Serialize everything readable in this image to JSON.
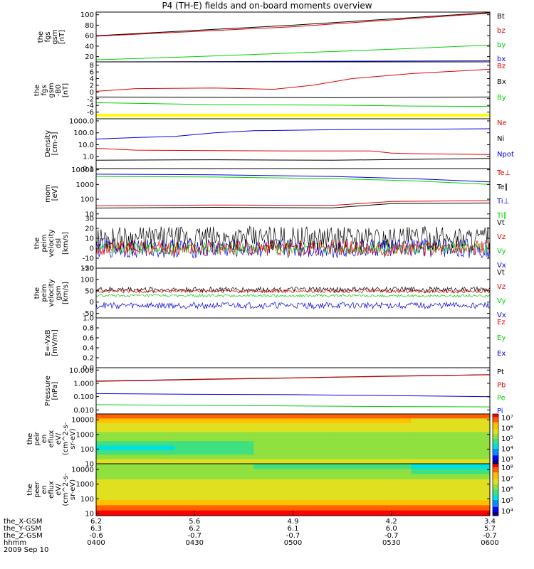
{
  "title": "P4 (TH-E) fields and on-board moments overview",
  "colors": {
    "black": "#000000",
    "red": "#e00000",
    "green": "#00d000",
    "blue": "#0000e0",
    "yellow": "#ffff00"
  },
  "chart_data": [
    {
      "type": "line",
      "ylabel": [
        "the",
        "fgs",
        "gsm",
        "[nT]"
      ],
      "ylim": [
        10,
        105
      ],
      "yticks": [
        20,
        40,
        60,
        80,
        100
      ],
      "legend": [
        {
          "name": "Bt",
          "color": "#000000"
        },
        {
          "name": "bz",
          "color": "#e00000"
        },
        {
          "name": "by",
          "color": "#00d000"
        },
        {
          "name": "bx",
          "color": "#0000e0"
        }
      ],
      "series": [
        {
          "name": "Bt",
          "color": "#000000",
          "x": [
            0,
            0.25,
            0.5,
            0.75,
            1
          ],
          "y": [
            60,
            70,
            80,
            92,
            104
          ]
        },
        {
          "name": "bz",
          "color": "#e00000",
          "x": [
            0,
            0.25,
            0.5,
            0.75,
            1
          ],
          "y": [
            59,
            68,
            77,
            90,
            103
          ]
        },
        {
          "name": "by",
          "color": "#00d000",
          "x": [
            0,
            0.25,
            0.5,
            0.75,
            1
          ],
          "y": [
            14,
            20,
            27,
            34,
            42
          ]
        },
        {
          "name": "bx",
          "color": "#0000e0",
          "x": [
            0,
            0.5,
            1
          ],
          "y": [
            10,
            11,
            12
          ]
        }
      ]
    },
    {
      "type": "line",
      "ylabel": [
        "the",
        "fgs",
        "gsm",
        "-B0",
        "[nT]"
      ],
      "ylim": [
        -8,
        9
      ],
      "yticks": [
        -6,
        -4,
        -2,
        0,
        2,
        4,
        6,
        8
      ],
      "legend": [
        {
          "name": "Bz",
          "color": "#e00000"
        },
        {
          "name": "Bx",
          "color": "#000000"
        },
        {
          "name": "By",
          "color": "#00d000"
        }
      ],
      "series": [
        {
          "name": "Bz",
          "color": "#e00000",
          "x": [
            0,
            0.1,
            0.3,
            0.45,
            0.55,
            0.65,
            0.8,
            1
          ],
          "y": [
            0.2,
            1,
            1.2,
            0.8,
            2,
            4,
            5.5,
            6.8
          ]
        },
        {
          "name": "Bx",
          "color": "#000000",
          "x": [
            0,
            0.3,
            0.6,
            0.8,
            1
          ],
          "y": [
            -1.5,
            -1.6,
            -1.7,
            -1.6,
            -1.5
          ]
        },
        {
          "name": "By",
          "color": "#00d000",
          "x": [
            0,
            0.3,
            0.6,
            0.8,
            1
          ],
          "y": [
            -3.2,
            -3.8,
            -3.9,
            -4.2,
            -4.3
          ]
        }
      ],
      "band": {
        "color": "#ffff00"
      }
    },
    {
      "type": "line",
      "scale": "log",
      "ylabel": [
        "Density",
        "[cm-3]"
      ],
      "ylim": [
        0.1,
        1500
      ],
      "yticks": [
        0.1,
        1.0,
        10.0,
        100.0,
        1000.0
      ],
      "yticklabels": [
        "0.1",
        "1.0",
        "10.0",
        "100.0",
        "1000.0"
      ],
      "legend": [
        {
          "name": "Ne",
          "color": "#e00000"
        },
        {
          "name": "Ni",
          "color": "#000000"
        },
        {
          "name": "Npot",
          "color": "#0000e0"
        }
      ],
      "series": [
        {
          "name": "Npot",
          "color": "#0000e0",
          "x": [
            0,
            0.1,
            0.2,
            0.3,
            0.4,
            0.6,
            0.8,
            1
          ],
          "y": [
            30,
            40,
            50,
            100,
            150,
            180,
            200,
            220
          ]
        },
        {
          "name": "Ne",
          "color": "#e00000",
          "x": [
            0,
            0.1,
            0.3,
            0.5,
            0.7,
            0.75,
            0.8,
            1
          ],
          "y": [
            5,
            3.5,
            3.2,
            3.0,
            3.0,
            2.0,
            1.8,
            1.5
          ]
        },
        {
          "name": "Ni",
          "color": "#000000",
          "x": [
            0,
            0.3,
            0.6,
            0.8,
            1
          ],
          "y": [
            0.5,
            0.55,
            0.5,
            0.6,
            0.7
          ]
        }
      ]
    },
    {
      "type": "line",
      "scale": "log",
      "ylabel": [
        "mom",
        "[eV]"
      ],
      "ylim": [
        5,
        12000
      ],
      "yticks": [
        10,
        100,
        1000,
        10000
      ],
      "yticklabels": [
        "10",
        "100",
        "1000",
        "10000"
      ],
      "legend": [
        {
          "name": "Te⊥",
          "color": "#e00000"
        },
        {
          "name": "Te∥",
          "color": "#000000"
        },
        {
          "name": "Ti⊥",
          "color": "#0000e0"
        },
        {
          "name": "Ti∥",
          "color": "#00d000"
        }
      ],
      "series": [
        {
          "name": "Ti⊥",
          "color": "#0000e0",
          "x": [
            0,
            0.3,
            0.6,
            0.8,
            1
          ],
          "y": [
            5000,
            4500,
            3500,
            2500,
            1500
          ]
        },
        {
          "name": "Ti∥",
          "color": "#00d000",
          "x": [
            0,
            0.3,
            0.6,
            0.8,
            1
          ],
          "y": [
            3500,
            3200,
            2500,
            1800,
            1000
          ]
        },
        {
          "name": "Te⊥",
          "color": "#e00000",
          "x": [
            0,
            0.3,
            0.6,
            0.75,
            1
          ],
          "y": [
            35,
            40,
            38,
            70,
            80
          ]
        },
        {
          "name": "Te∥",
          "color": "#000000",
          "x": [
            0,
            0.3,
            0.6,
            0.75,
            1
          ],
          "y": [
            25,
            28,
            26,
            50,
            55
          ]
        }
      ]
    },
    {
      "type": "line",
      "ylabel": [
        "the",
        "peim",
        "velocity",
        "dsl",
        "[km/s]"
      ],
      "ylim": [
        -20,
        30
      ],
      "yticks": [
        -20,
        -10,
        0,
        10,
        20,
        30
      ],
      "legend": [
        {
          "name": "Vt",
          "color": "#000000"
        },
        {
          "name": "Vz",
          "color": "#e00000"
        },
        {
          "name": "Vy",
          "color": "#00d000"
        },
        {
          "name": "Vx",
          "color": "#0000e0"
        }
      ],
      "noisy": [
        {
          "color": "#0000e0",
          "base": 0,
          "amp": 10
        },
        {
          "color": "#00d000",
          "base": 0,
          "amp": 6
        },
        {
          "color": "#000000",
          "base": 10,
          "amp": 12
        },
        {
          "color": "#e00000",
          "base": 0,
          "amp": 8
        }
      ]
    },
    {
      "type": "line",
      "ylabel": [
        "the",
        "peim",
        "velocity",
        "gsm",
        "[km/s]"
      ],
      "ylim": [
        -70,
        150
      ],
      "yticks": [
        -50,
        0,
        50,
        100,
        150
      ],
      "legend": [
        {
          "name": "Vt",
          "color": "#000000"
        },
        {
          "name": "Vz",
          "color": "#e00000"
        },
        {
          "name": "Vy",
          "color": "#00d000"
        },
        {
          "name": "Vx",
          "color": "#0000e0"
        }
      ],
      "noisy": [
        {
          "color": "#000000",
          "base": 55,
          "amp": 12
        },
        {
          "color": "#e00000",
          "base": 48,
          "amp": 8
        },
        {
          "color": "#00d000",
          "base": 28,
          "amp": 6
        },
        {
          "color": "#0000e0",
          "base": -15,
          "amp": 14
        }
      ]
    },
    {
      "type": "line",
      "ylabel": [
        "E=-VxB",
        "[mV/m]"
      ],
      "ylim": [
        0,
        1
      ],
      "yticks": [
        0.0,
        0.2,
        0.4,
        0.6,
        0.8,
        1.0
      ],
      "yticklabels": [
        "0.0",
        "0.2",
        "0.4",
        "0.6",
        "0.8",
        "1.0"
      ],
      "legend": [
        {
          "name": "Ez",
          "color": "#e00000"
        },
        {
          "name": "Ey",
          "color": "#00d000"
        },
        {
          "name": "Ex",
          "color": "#0000e0"
        }
      ],
      "series": []
    },
    {
      "type": "line",
      "scale": "log",
      "ylabel": [
        "Pressure",
        "[nPa]"
      ],
      "ylim": [
        0.005,
        15
      ],
      "yticks": [
        0.01,
        0.1,
        1.0,
        10.0
      ],
      "yticklabels": [
        "0.010",
        "0.100",
        "1.000",
        "10.000"
      ],
      "legend": [
        {
          "name": "Pt",
          "color": "#000000"
        },
        {
          "name": "Pb",
          "color": "#e00000"
        },
        {
          "name": "Pe",
          "color": "#00d000"
        },
        {
          "name": "Pi",
          "color": "#0000e0"
        }
      ],
      "series": [
        {
          "name": "Pt",
          "color": "#000000",
          "x": [
            0,
            0.25,
            0.5,
            0.75,
            1
          ],
          "y": [
            1.5,
            2.0,
            2.6,
            3.5,
            4.5
          ]
        },
        {
          "name": "Pb",
          "color": "#e00000",
          "x": [
            0,
            0.25,
            0.5,
            0.75,
            1
          ],
          "y": [
            1.4,
            1.9,
            2.5,
            3.4,
            4.4
          ]
        },
        {
          "name": "Pi",
          "color": "#0000e0",
          "x": [
            0,
            0.25,
            0.5,
            0.75,
            1
          ],
          "y": [
            0.17,
            0.15,
            0.14,
            0.12,
            0.1
          ]
        },
        {
          "name": "Pe",
          "color": "#00d000",
          "x": [
            0,
            0.25,
            0.5,
            0.75,
            1
          ],
          "y": [
            0.025,
            0.022,
            0.02,
            0.018,
            0.017
          ]
        }
      ]
    },
    {
      "type": "heatmap",
      "scale": "log",
      "ylabel": [
        "the",
        "peir",
        "en",
        "eflux",
        "eV/",
        "(cm^2-s-",
        "sr-eV)"
      ],
      "ylim": [
        10,
        25000
      ],
      "yticks": [
        10,
        100,
        1000,
        10000
      ],
      "yticklabels": [
        "10",
        "100",
        "1000",
        "10000"
      ],
      "colorbar": {
        "ticks": [
          "10⁷",
          "10⁶",
          "10⁵",
          "10⁴",
          "10³"
        ]
      },
      "rows": [
        [
          8,
          8,
          8,
          8,
          8
        ],
        [
          7,
          7,
          7,
          7,
          6
        ],
        [
          6,
          6,
          6,
          6,
          6
        ],
        [
          6,
          6,
          6,
          6,
          6
        ],
        [
          5,
          5,
          5,
          5,
          5
        ],
        [
          5,
          5,
          5,
          5,
          5
        ],
        [
          4,
          4,
          5,
          5,
          5
        ],
        [
          3,
          4,
          5,
          5,
          5
        ],
        [
          4,
          4,
          5,
          5,
          5
        ],
        [
          5,
          5,
          5,
          5,
          5
        ],
        [
          6,
          6,
          6,
          6,
          6
        ]
      ]
    },
    {
      "type": "heatmap",
      "scale": "log",
      "ylabel": [
        "the",
        "peer",
        "en",
        "eflux",
        "eV/",
        "(cm^2-s-",
        "sr-eV)"
      ],
      "ylim": [
        7,
        25000
      ],
      "yticks": [
        10,
        100,
        1000,
        10000
      ],
      "yticklabels": [
        "10",
        "100",
        "1000",
        "10000"
      ],
      "colorbar": {
        "ticks": [
          "10⁸",
          "10⁷",
          "10⁶",
          "10⁵",
          "10⁴"
        ]
      },
      "rows": [
        [
          5,
          5,
          4,
          4,
          3
        ],
        [
          5,
          5,
          5,
          5,
          4
        ],
        [
          5,
          5,
          5,
          5,
          5
        ],
        [
          6,
          6,
          6,
          6,
          6
        ],
        [
          6,
          6,
          6,
          6,
          6
        ],
        [
          6,
          6,
          6,
          6,
          6
        ],
        [
          6,
          6,
          6,
          6,
          6
        ],
        [
          7,
          7,
          7,
          7,
          7
        ],
        [
          8,
          8,
          8,
          8,
          8
        ],
        [
          9,
          9,
          9,
          9,
          9
        ]
      ]
    }
  ],
  "footer": {
    "rows": [
      {
        "label": "the_X-GSM",
        "values": [
          "6.2",
          "5.6",
          "4.9",
          "4.2",
          "3.4"
        ]
      },
      {
        "label": "the_Y-GSM",
        "values": [
          "6.3",
          "6.2",
          "6.1",
          "6.0",
          "5.7"
        ]
      },
      {
        "label": "the_Z-GSM",
        "values": [
          "-0.6",
          "-0.7",
          "-0.7",
          "-0.7",
          "-0.7"
        ]
      },
      {
        "label": "hhmm",
        "values": [
          "0400",
          "0430",
          "0500",
          "0530",
          "0600"
        ]
      }
    ],
    "date": "2009 Sep 10"
  }
}
